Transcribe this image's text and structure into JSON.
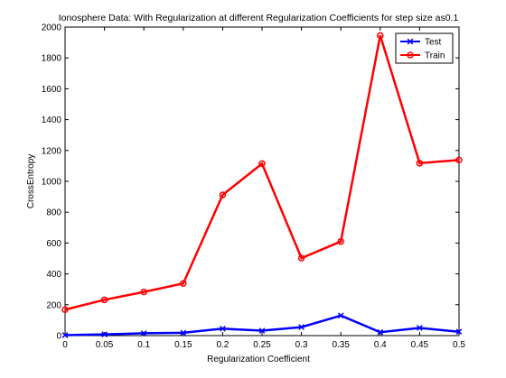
{
  "chart_data": {
    "type": "line",
    "title": "Ionosphere Data: With Regularization at different Regularization Coefficients for step size as0.1",
    "xlabel": "Regularization Coefficient",
    "ylabel": "CrossEntropy",
    "x": [
      0,
      0.05,
      0.1,
      0.15,
      0.2,
      0.25,
      0.3,
      0.35,
      0.4,
      0.45,
      0.5
    ],
    "xlim": [
      0,
      0.5
    ],
    "ylim": [
      0,
      2000
    ],
    "xticks": [
      "0",
      "0.05",
      "0.1",
      "0.15",
      "0.2",
      "0.25",
      "0.3",
      "0.35",
      "0.4",
      "0.45",
      "0.5"
    ],
    "yticks": [
      "0",
      "200",
      "400",
      "600",
      "800",
      "1000",
      "1200",
      "1400",
      "1600",
      "1800",
      "2000"
    ],
    "grid": false,
    "legend_position": "top-right",
    "series": [
      {
        "name": "Test",
        "color": "#0000ff",
        "marker": "x",
        "values": [
          3,
          8,
          15,
          18,
          45,
          32,
          55,
          130,
          22,
          50,
          25
        ]
      },
      {
        "name": "Train",
        "color": "#ff0000",
        "marker": "circle",
        "values": [
          168,
          232,
          283,
          338,
          912,
          1115,
          502,
          610,
          1945,
          1118,
          1138
        ]
      }
    ]
  }
}
